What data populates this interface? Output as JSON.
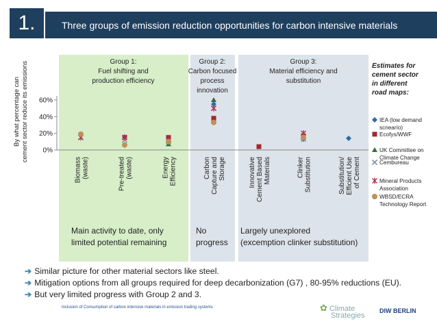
{
  "header": {
    "number": "1.",
    "title": "Three groups of emission reduction opportunities for carbon intensive materials"
  },
  "chart_data": {
    "type": "scatter",
    "title": "",
    "ylabel": "By what percentage can cement sector reduce its emissions",
    "ylim": [
      0,
      60
    ],
    "yticks": [
      "0%",
      "20%",
      "40%",
      "60%"
    ],
    "categories": [
      "Biomass (waste)",
      "Pre-treated (waste)",
      "Energy Efficiency",
      "Carbon Capture and Storage",
      "Innovative Cement Based Materials",
      "Clinker Substitution",
      "Substitution/ Efficient Use of Cement"
    ],
    "category_lines": [
      [
        "Biomass",
        "(waste)"
      ],
      [
        "Pre-treated",
        "(waste)"
      ],
      [
        "Energy",
        "Efficiency"
      ],
      [
        "Carbon",
        "Capture and",
        "Storage"
      ],
      [
        "Innovative",
        "Cement Based",
        "Materials"
      ],
      [
        "Clinker",
        "Substitution"
      ],
      [
        "Substitution/",
        "Efficient Use",
        "of Cement"
      ]
    ],
    "groups": [
      {
        "lines": [
          "Group 1:",
          "Fuel shifting and",
          "production efficiency"
        ],
        "note_lines": [
          "Main activity to date, only",
          "limited potential remaining"
        ],
        "color": "#d7eec9"
      },
      {
        "lines": [
          "Group 2:",
          "Carbon focused",
          "process",
          "innovation"
        ],
        "note_lines": [
          "No",
          "progress"
        ],
        "color": "#dde3ea"
      },
      {
        "lines": [
          "Group 3:",
          "Material efficiency and",
          "substitution"
        ],
        "note_lines": [
          "Largely unexplored",
          "(excemption clinker substitution)"
        ],
        "color": "#dde3ea"
      }
    ],
    "legend_title": [
      "Estimates for",
      "cement sector",
      "in different",
      "road maps:"
    ],
    "series": [
      {
        "name_lines": [
          "IEA (low demand",
          "scnearío)"
        ],
        "marker": "diamond",
        "color": "#2e6aa8",
        "values": [
          null,
          null,
          null,
          55,
          null,
          13,
          14
        ]
      },
      {
        "name_lines": [
          "Ecofys/WWF"
        ],
        "marker": "square",
        "color": "#a0282e",
        "values": [
          null,
          15,
          15,
          38,
          4,
          17,
          null
        ]
      },
      {
        "name_lines": [
          "UK Committee on",
          "Climate Change"
        ],
        "marker": "triangle",
        "color": "#3a6b3a",
        "values": [
          null,
          null,
          7,
          60,
          null,
          null,
          null
        ]
      },
      {
        "name_lines": [
          "Cembureau"
        ],
        "marker": "x",
        "color": "#8090b8",
        "values": [
          15,
          12,
          10,
          50,
          null,
          13,
          null
        ]
      },
      {
        "name_lines": [
          "Mineral Products",
          "Association"
        ],
        "marker": "star",
        "color": "#b03050",
        "values": [
          15,
          15,
          13,
          50,
          null,
          20,
          null
        ]
      },
      {
        "name_lines": [
          "WBSD/ECRA",
          "Technology Report"
        ],
        "marker": "circle",
        "color": "#c0905a",
        "values": [
          19,
          6,
          10,
          33,
          null,
          15,
          null
        ]
      }
    ]
  },
  "bullets": [
    "Similar picture for other material sectors like steel.",
    "Mitigation options from all groups required for deep decarbonization (G7) , 80-95% reductions (EU).",
    "But very limited progress with Group 2 and 3."
  ],
  "footer": {
    "caption": "Inclusion of Consumption of carbon intensive materials in emission trading systems",
    "logo_left": [
      "Climate",
      "Strategies"
    ],
    "logo_right": "DIW BERLIN"
  }
}
